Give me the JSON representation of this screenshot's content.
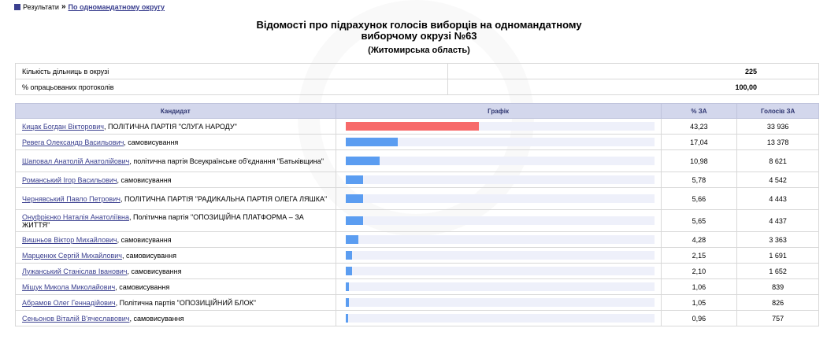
{
  "breadcrumb": {
    "root": "Результати",
    "sep": "»",
    "current": "По одномандатному округу"
  },
  "title_line1": "Відомості про підрахунок голосів виборців на одномандатному",
  "title_line2": "виборчому окрузі №63",
  "region": "(Житомирська область)",
  "summary": [
    {
      "label": "Кількість дільниць в окрузі",
      "value": "225"
    },
    {
      "label": "% опрацьованих протоколів",
      "value": "100,00"
    }
  ],
  "headers": {
    "candidate": "Кандидат",
    "chart": "Графік",
    "percent": "% ЗА",
    "votes": "Голосів ЗА"
  },
  "colors": {
    "leader_bar": "#f76a6a",
    "bar": "#5b9df1",
    "track": "#eef0fa",
    "header_bg": "#d3d7ec",
    "link": "#3a3f8f"
  },
  "candidates": [
    {
      "name": "Кицак Богдан Вікторович",
      "party": ", ПОЛІТИЧНА ПАРТІЯ \"СЛУГА НАРОДУ\"",
      "percent": "43,23",
      "votes": "33 936",
      "share": 43.23
    },
    {
      "name": "Ревега Олександр Васильович",
      "party": ", самовисування",
      "percent": "17,04",
      "votes": "13 378",
      "share": 17.04
    },
    {
      "name": "Шаповал Анатолій Анатолійович",
      "party": ", політична партія Всеукраїнське об'єднання \"Батьківщина\"",
      "percent": "10,98",
      "votes": "8 621",
      "share": 10.98
    },
    {
      "name": "Романський Ігор Васильович",
      "party": ", самовисування",
      "percent": "5,78",
      "votes": "4 542",
      "share": 5.78
    },
    {
      "name": "Чернявський Павло Петрович",
      "party": ", ПОЛІТИЧНА ПАРТІЯ \"РАДИКАЛЬНА ПАРТІЯ ОЛЕГА ЛЯШКА\"",
      "percent": "5,66",
      "votes": "4 443",
      "share": 5.66
    },
    {
      "name": "Онуфрієнко Наталія Анатоліївна",
      "party": ", Політична партія \"ОПОЗИЦІЙНА ПЛАТФОРМА – ЗА ЖИТТЯ\"",
      "percent": "5,65",
      "votes": "4 437",
      "share": 5.65
    },
    {
      "name": "Вишньов Віктор Михайлович",
      "party": ", самовисування",
      "percent": "4,28",
      "votes": "3 363",
      "share": 4.28
    },
    {
      "name": "Марценюк Сергій Михайлович",
      "party": ", самовисування",
      "percent": "2,15",
      "votes": "1 691",
      "share": 2.15
    },
    {
      "name": "Лужанський Станіслав Іванович",
      "party": ", самовисування",
      "percent": "2,10",
      "votes": "1 652",
      "share": 2.1
    },
    {
      "name": "Міщук Микола Миколайович",
      "party": ", самовисування",
      "percent": "1,06",
      "votes": "839",
      "share": 1.06
    },
    {
      "name": "Абрамов Олег Геннадійович",
      "party": ", Політична партія \"ОПОЗИЦІЙНИЙ БЛОК\"",
      "percent": "1,05",
      "votes": "826",
      "share": 1.05
    },
    {
      "name": "Сеньонов Віталій В'ячеславович",
      "party": ", самовисування",
      "percent": "0,96",
      "votes": "757",
      "share": 0.96
    }
  ]
}
